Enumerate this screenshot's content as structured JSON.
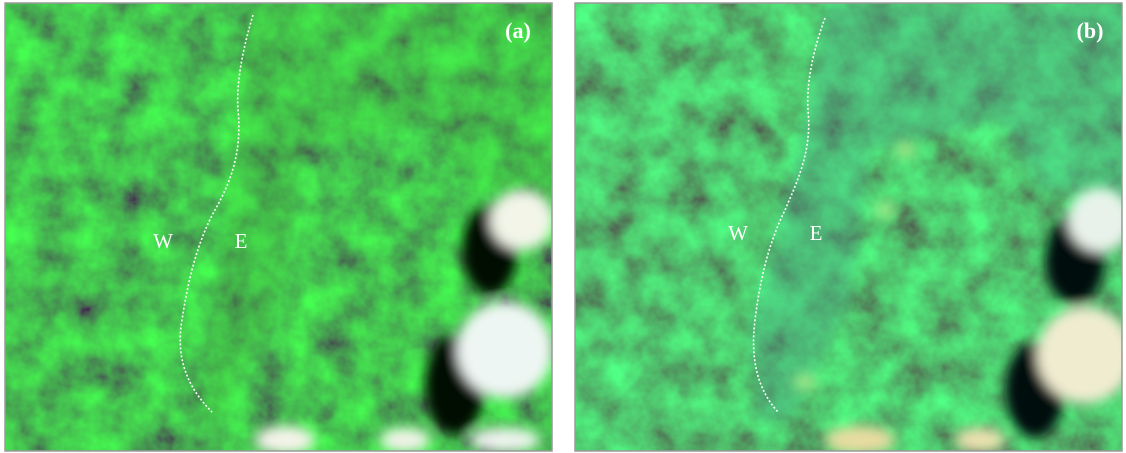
{
  "panels": [
    {
      "label": "(a)",
      "west": "W",
      "east": "E"
    },
    {
      "label": "(b)",
      "west": "W",
      "east": "E"
    }
  ]
}
